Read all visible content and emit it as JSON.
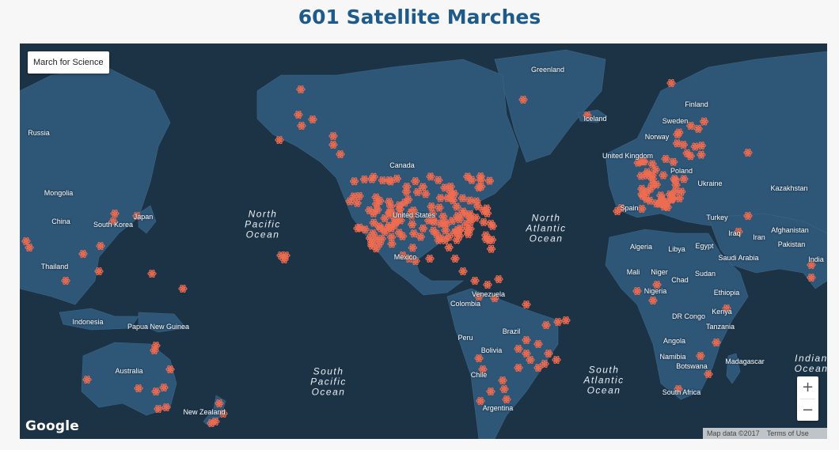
{
  "title": "601 Satellite Marches",
  "map": {
    "layer_button_label": "March for Science",
    "zoom_in_label": "+",
    "zoom_out_label": "−",
    "google_logo": "Google",
    "map_data": "Map data ©2017",
    "terms_label": "Terms of Use",
    "marker_icon": "atom-icon",
    "colors": {
      "ocean": "#1c3346",
      "land": "#2e5677",
      "marker": "#ef6c51",
      "title": "#1e5b8a"
    },
    "place_labels": [
      "Greenland",
      "Finland",
      "Iceland",
      "Sweden",
      "Norway",
      "United Kingdom",
      "Poland",
      "Ukraine",
      "Spain",
      "Kazakhstan",
      "Russia",
      "Mongolia",
      "China",
      "South Korea",
      "Japan",
      "Canada",
      "United States",
      "Mexico",
      "Turkey",
      "Iraq",
      "Iran",
      "Afghanistan",
      "Pakistan",
      "India",
      "Algeria",
      "Libya",
      "Egypt",
      "Saudi Arabia",
      "Mali",
      "Niger",
      "Chad",
      "Sudan",
      "Nigeria",
      "Ethiopia",
      "DR Congo",
      "Kenya",
      "Tanzania",
      "Angola",
      "Namibia",
      "Botswana",
      "Madagascar",
      "South Africa",
      "Thailand",
      "Indonesia",
      "Papua New Guinea",
      "Australia",
      "New Zealand",
      "Venezuela",
      "Colombia",
      "Peru",
      "Brazil",
      "Bolivia",
      "Chile",
      "Argentina"
    ],
    "ocean_labels": [
      "North\nPacific\nOcean",
      "North\nAtlantic\nOcean",
      "South\nPacific\nOcean",
      "South\nAtlantic\nOcean",
      "Indian\nOcean"
    ]
  }
}
